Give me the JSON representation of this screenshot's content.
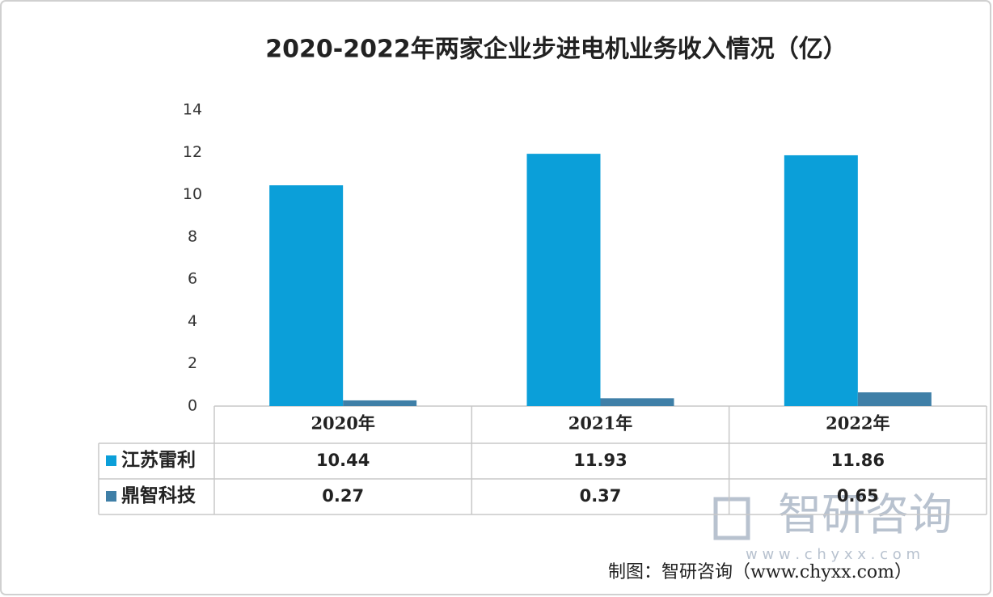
{
  "chart_data": {
    "type": "bar",
    "title": "2020-2022年两家企业步进电机业务收入情况（亿）",
    "categories": [
      "2020年",
      "2021年",
      "2022年"
    ],
    "series": [
      {
        "name": "江苏雷利",
        "color": "#0b9fd9",
        "values": [
          10.44,
          11.93,
          11.86
        ]
      },
      {
        "name": "鼎智科技",
        "color": "#3f7fa7",
        "values": [
          0.27,
          0.37,
          0.65
        ]
      }
    ],
    "ylim": [
      0,
      14
    ],
    "yticks": [
      0,
      2,
      4,
      6,
      8,
      10,
      12,
      14
    ],
    "grid": false,
    "watermark": "智研咨询",
    "watermark_url": "w w w . c h y x x . c o m",
    "source": "制图：智研咨询（www.chyxx.com）"
  }
}
